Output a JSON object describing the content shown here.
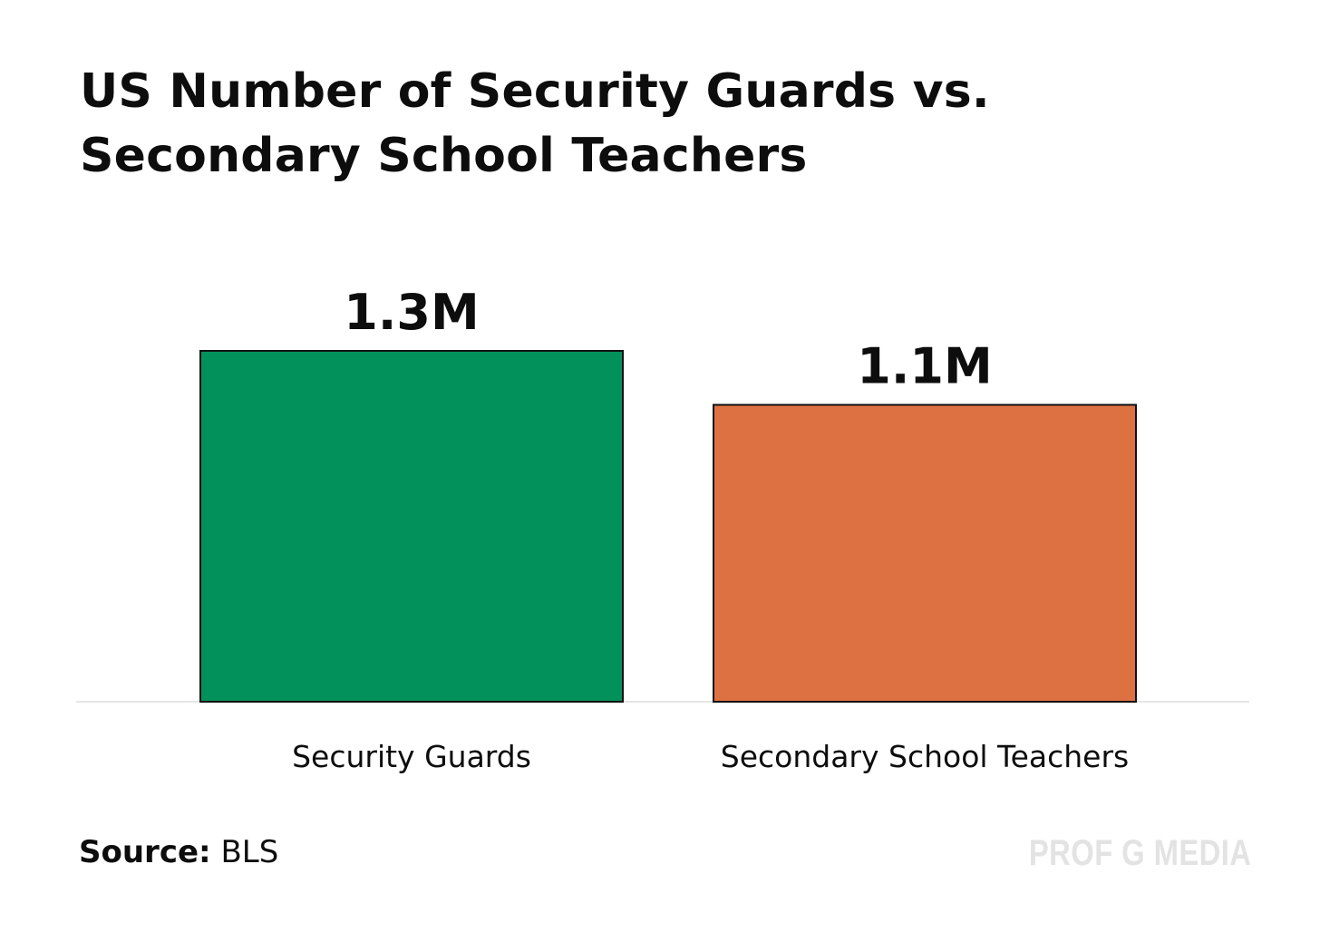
{
  "chart_data": {
    "type": "bar",
    "title_lines": [
      "US Number of Security Guards vs.",
      "Secondary School Teachers"
    ],
    "categories": [
      "Security Guards",
      "Secondary School Teachers"
    ],
    "values": [
      1.3,
      1.1
    ],
    "value_labels": [
      "1.3M",
      "1.1M"
    ],
    "colors": [
      "#03915b",
      "#de7142"
    ],
    "ylim": [
      0,
      1.3
    ],
    "grid": false,
    "legend": "none"
  },
  "source": {
    "label": "Source:",
    "value": "BLS"
  },
  "watermark": "PROF G MEDIA"
}
